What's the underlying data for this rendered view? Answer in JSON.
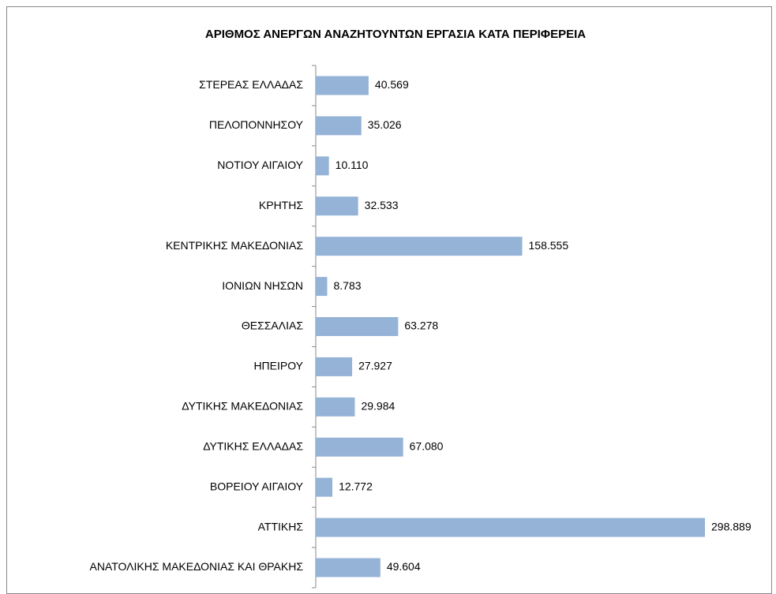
{
  "chart_data": {
    "type": "bar",
    "orientation": "horizontal",
    "title": "ΑΡΙΘΜΟΣ ΑΝΕΡΓΩΝ ΑΝΑΖΗΤΟΥΝΤΩΝ ΕΡΓΑΣΙΑ ΚΑΤΑ ΠΕΡΙΦΕΡΕΙΑ",
    "categories": [
      "ΣΤΕΡΕΑΣ ΕΛΛΑΔΑΣ",
      "ΠΕΛΟΠΟΝΝΗΣΟΥ",
      "ΝΟΤΙΟΥ ΑΙΓΑΙΟΥ",
      "ΚΡΗΤΗΣ",
      "ΚΕΝΤΡΙΚΗΣ ΜΑΚΕΔΟΝΙΑΣ",
      "ΙΟΝΙΩΝ ΝΗΣΩΝ",
      "ΘΕΣΣΑΛΙΑΣ",
      "ΗΠΕΙΡΟΥ",
      "ΔΥΤΙΚΗΣ ΜΑΚΕΔΟΝΙΑΣ",
      "ΔΥΤΙΚΗΣ ΕΛΛΑΔΑΣ",
      "ΒΟΡΕΙΟΥ ΑΙΓΑΙΟΥ",
      "ΑΤΤΙΚΗΣ",
      "ΑΝΑΤΟΛΙΚΗΣ ΜΑΚΕΔΟΝΙΑΣ ΚΑΙ ΘΡΑΚΗΣ"
    ],
    "values": [
      40569,
      35026,
      10110,
      32533,
      158555,
      8783,
      63278,
      27927,
      29984,
      67080,
      12772,
      298889,
      49604
    ],
    "value_labels": [
      "40.569",
      "35.026",
      "10.110",
      "32.533",
      "158.555",
      "8.783",
      "63.278",
      "27.927",
      "29.984",
      "67.080",
      "12.772",
      "298.889",
      "49.604"
    ],
    "color": "#95b3d7"
  }
}
